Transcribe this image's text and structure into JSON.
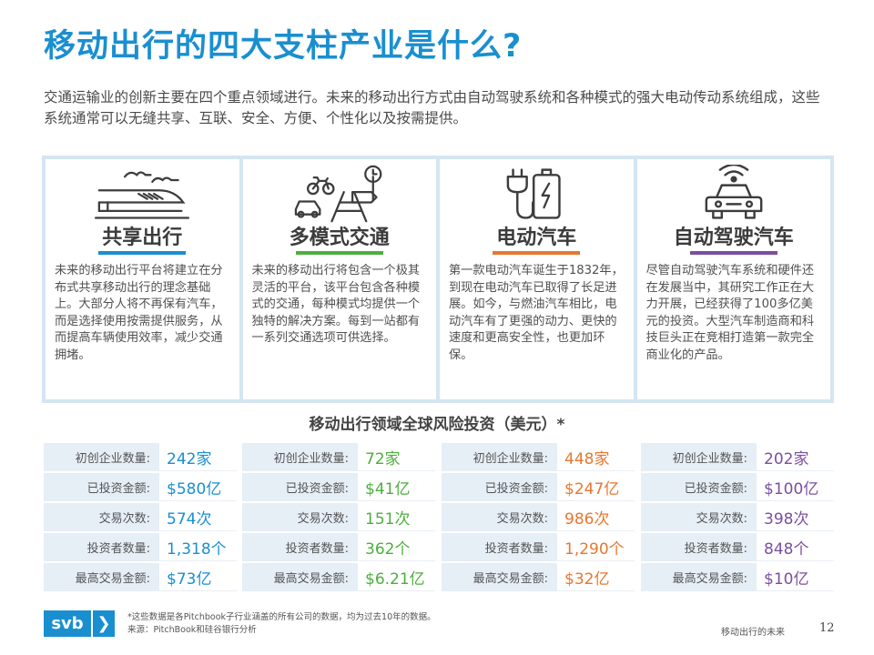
{
  "title": "移动出行的四大支柱产业是什么?",
  "intro": "交通运输业的创新主要在四个重点领域进行。未来的移动出行方式由自动驾驶系统和各种模式的强大电动传动系统组成，这些系统通常可以无缝共享、互联、安全、方便、个性化以及按需提供。",
  "pillars": [
    {
      "icon": "train-icon",
      "heading": "共享出行",
      "color": "#1a8fd0",
      "desc": "未来的移动出行平台将建立在分布式共享移动出行的理念基础上。大部分人将不再保有汽车，而是选择使用按需提供服务，从而提高车辆使用效率，减少交通拥堵。"
    },
    {
      "icon": "multimodal-icon",
      "heading": "多模式交通",
      "color": "#4caf3c",
      "desc": "未来的移动出行将包含一个极其灵活的平台，该平台包含各种模式的交通，每种模式均提供一个独特的解决方案。每到一站都有一系列交通选项可供选择。"
    },
    {
      "icon": "ev-charger-icon",
      "heading": "电动汽车",
      "color": "#e8772e",
      "desc": "第一款电动汽车诞生于1832年，到现在电动汽车已取得了长足进展。如今，与燃油汽车相比，电动汽车有了更强的动力、更快的速度和更高安全性，也更加环保。"
    },
    {
      "icon": "autonomous-car-icon",
      "heading": "自动驾驶汽车",
      "color": "#7b4fa0",
      "desc": "尽管自动驾驶汽车系统和硬件还在发展当中，其研究工作正在大力开展，已经获得了100多亿美元的投资。大型汽车制造商和科技巨头正在竞相打造第一款完全商业化的产品。"
    }
  ],
  "stats_title": "移动出行领域全球风险投资（美元）*",
  "stat_labels": [
    "初创企业数量:",
    "已投资金额:",
    "交易次数:",
    "投资者数量:",
    "最高交易金额:"
  ],
  "stats": [
    {
      "color": "#1a8fd0",
      "values": [
        "242家",
        "$580亿",
        "574次",
        "1,318个",
        "$73亿"
      ]
    },
    {
      "color": "#4caf3c",
      "values": [
        "72家",
        "$41亿",
        "151次",
        "362个",
        "$6.21亿"
      ]
    },
    {
      "color": "#e8772e",
      "values": [
        "448家",
        "$247亿",
        "986次",
        "1,290个",
        "$32亿"
      ]
    },
    {
      "color": "#7b4fa0",
      "values": [
        "202家",
        "$100亿",
        "398次",
        "848个",
        "$10亿"
      ]
    }
  ],
  "footer": {
    "logo_text": "svb",
    "logo_arrow": "❯",
    "note": "*这些数据是各Pitchbook子行业涵盖的所有公司的数据，均为过去10年的数据。",
    "source": "来源：PitchBook和硅谷银行分析",
    "report_name": "移动出行的未来",
    "page": "12"
  }
}
